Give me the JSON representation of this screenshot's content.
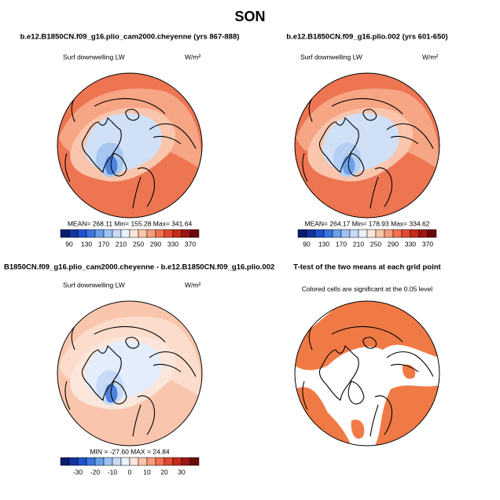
{
  "title": "SON",
  "colorbar_colors": [
    "#0b1f6e",
    "#13349f",
    "#1f52cc",
    "#3a76df",
    "#6a9fea",
    "#9ec2f3",
    "#c7dbf7",
    "#e9f1fb",
    "#fde5da",
    "#fcc4aa",
    "#f99c7b",
    "#f27150",
    "#e04b2f",
    "#c62b1d",
    "#9e1613",
    "#6b0a0a"
  ],
  "panels": [
    {
      "title": "b.e12.B1850CN.f09_g16.plio_cam2000.cheyenne (yrs 867-888)",
      "variable": "Surf downwelling LW",
      "units": "W/m²",
      "stats": "MEAN= 268.11   Min= 155.28   Max= 341.64",
      "colorbar_labels": [
        90,
        130,
        170,
        210,
        250,
        290,
        330,
        370
      ]
    },
    {
      "title": "b.e12.B1850CN.f09_g16.plio.002 (yrs 601-650)",
      "variable": "Surf downwelling LW",
      "units": "W/m²",
      "stats": "MEAN= 264.17   Min= 178.93   Max= 334.62",
      "colorbar_labels": [
        90,
        130,
        170,
        210,
        250,
        290,
        330,
        370
      ]
    },
    {
      "title": "B1850CN.f09_g16.plio_cam2000.cheyenne - b.e12.B1850CN.f09_g16.plio.002",
      "variable": "Surf downwelling LW",
      "units": "W/m²",
      "stats": "MIN = -27.60  MAX =  24.84",
      "colorbar_labels": [
        -30,
        -20,
        -10,
        0,
        10,
        20,
        30
      ]
    },
    {
      "title": "T-test of the two means at each grid point",
      "note": "Colored cells are significant at the 0.05 level"
    }
  ]
}
